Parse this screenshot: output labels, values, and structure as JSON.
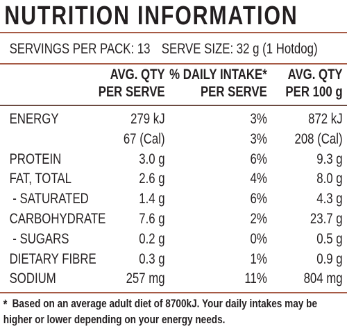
{
  "title": "NUTRITION INFORMATION",
  "servings": [
    "SERVINGS PER PACK: 13",
    "SERVE SIZE: 32 g (1 Hotdog)"
  ],
  "columns": [
    [
      "AVG. QTY",
      "PER SERVE"
    ],
    [
      "% DAILY INTAKE*",
      "PER SERVE"
    ],
    [
      "AVG. QTY",
      "PER 100 g"
    ]
  ],
  "rows": [
    [
      "ENERGY",
      "279 kJ",
      "3%",
      "872 kJ"
    ],
    [
      null,
      "67 (Cal)",
      "3%",
      "208 (Cal)"
    ],
    [
      "PROTEIN",
      "3.0 g",
      "6%",
      "9.3 g"
    ],
    [
      "FAT, TOTAL",
      "2.6 g",
      "4%",
      "8.0 g"
    ],
    [
      " - SATURATED",
      "1.4 g",
      "6%",
      "4.3 g"
    ],
    [
      "CARBOHYDRATE",
      "7.6 g",
      "2%",
      "23.7 g"
    ],
    [
      " - SUGARS",
      "0.2 g",
      "0%",
      "0.5 g"
    ],
    [
      "DIETARY FIBRE",
      "0.3 g",
      "1%",
      "0.9 g"
    ],
    [
      "SODIUM",
      "257 mg",
      "11%",
      "804 mg"
    ]
  ],
  "footnote": {
    "mark": "*",
    "lines": [
      "Based on an average adult diet of 8700kJ. Your daily intakes may be",
      "higher or lower depending on your energy needs."
    ]
  }
}
